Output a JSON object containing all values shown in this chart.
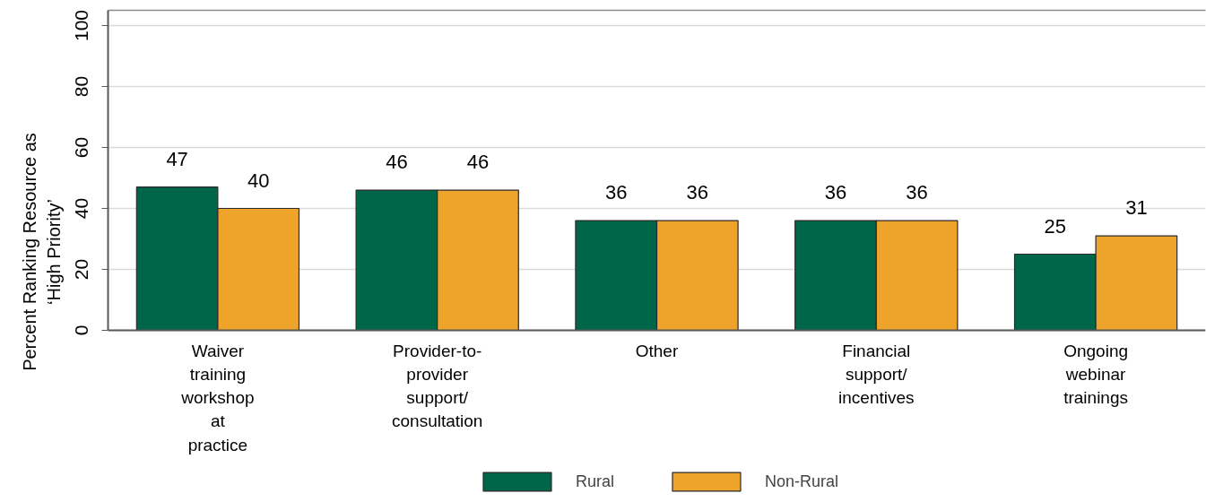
{
  "chart_data": {
    "type": "bar",
    "ylabel": "Percent Ranking Resource as\n‘High Priority’",
    "categories": [
      "Waiver\ntraining\nworkshop\nat\npractice",
      "Provider-to-\nprovider\nsupport/\nconsultation",
      "Other",
      "Financial\nsupport/\nincentives",
      "Ongoing\nwebinar\ntrainings"
    ],
    "series": [
      {
        "name": "Rural",
        "color": "#00664a",
        "values": [
          47,
          46,
          36,
          36,
          25
        ]
      },
      {
        "name": "Non-Rural",
        "color": "#eea42b",
        "values": [
          40,
          46,
          36,
          36,
          31
        ]
      }
    ],
    "ylim": [
      0,
      105
    ],
    "yticks": [
      0,
      20,
      40,
      60,
      80,
      100
    ],
    "grid": "y",
    "legend": "bottom",
    "data_labels": true
  }
}
